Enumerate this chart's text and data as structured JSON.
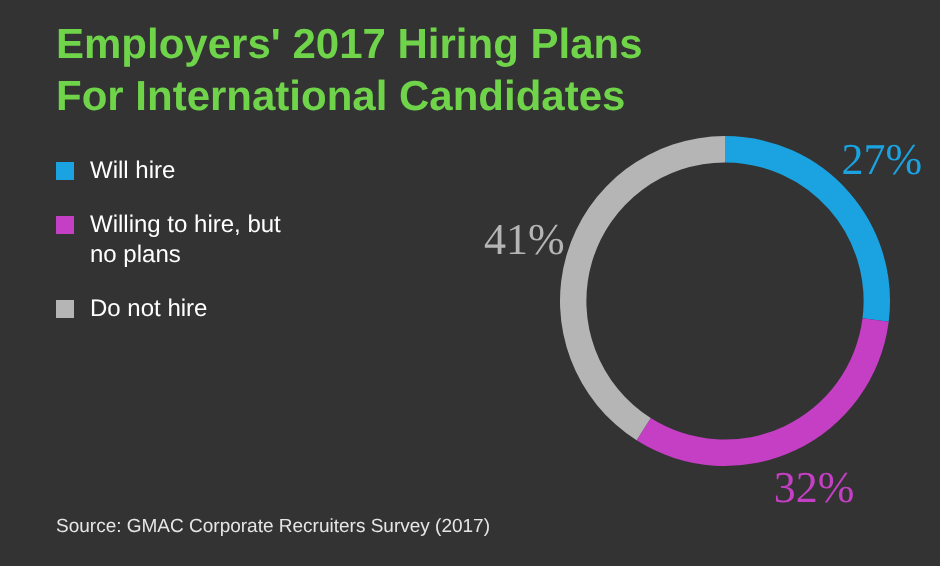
{
  "chart_data": {
    "type": "donut",
    "title": "Employers' 2017 Hiring Plans For International Candidates",
    "categories": [
      "Will hire",
      "Willing to hire, but no plans",
      "Do not hire"
    ],
    "values": [
      27,
      32,
      41
    ],
    "value_labels": [
      "27%",
      "32%",
      "41%"
    ],
    "colors": [
      "#1aa3e0",
      "#c43fc4",
      "#b5b5b5"
    ],
    "legend": "left",
    "annotations": [
      "Source: GMAC Corporate Recruiters Survey (2017)"
    ]
  }
}
